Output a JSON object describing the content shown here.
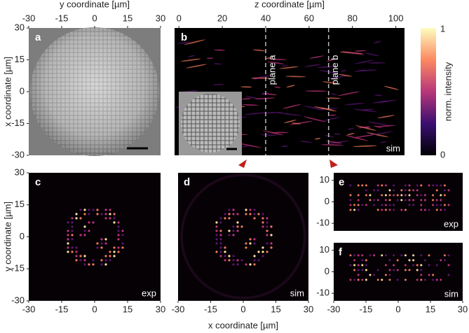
{
  "panel_a": {
    "label": "a",
    "top_axis": {
      "title": "y coordinate [µm]",
      "ticks": [
        -30,
        -15,
        0,
        15,
        30
      ],
      "lim": [
        -30,
        30
      ]
    },
    "left_axis": {
      "title": "x coordinate [µm]",
      "ticks": [
        30,
        15,
        0,
        -15,
        -30
      ],
      "lim": [
        -30,
        30
      ]
    }
  },
  "panel_b": {
    "label": "b",
    "tag": "sim",
    "top_axis": {
      "title": "z coordinate [µm]",
      "ticks": [
        0,
        20,
        40,
        60,
        80,
        100
      ],
      "lim": [
        -2,
        104
      ]
    },
    "planes": [
      {
        "label": "plane a",
        "z": 40
      },
      {
        "label": "plane b",
        "z": 69
      }
    ]
  },
  "colorbar": {
    "title": "norm. intensity",
    "max": 1,
    "min": 0
  },
  "panel_c": {
    "label": "c",
    "tag": "exp",
    "left_axis": {
      "title": "y coordinate [µm]",
      "ticks": [
        30,
        15,
        0,
        -15,
        -30
      ],
      "lim": [
        -30,
        30
      ]
    },
    "bottom_axis": {
      "ticks": [
        -30,
        -15,
        0,
        15,
        30
      ],
      "lim": [
        -30,
        30
      ]
    }
  },
  "panel_d": {
    "label": "d",
    "tag": "sim",
    "bottom_axis": {
      "ticks": [
        -30,
        -15,
        0,
        15,
        30
      ],
      "lim": [
        -30,
        30
      ]
    }
  },
  "panel_e": {
    "label": "e",
    "tag": "exp",
    "left_axis": {
      "ticks": [
        10,
        0,
        -10
      ],
      "lim": [
        -13.5,
        13.5
      ]
    }
  },
  "panel_f": {
    "label": "f",
    "tag": "sim",
    "left_axis": {
      "ticks": [
        10,
        0,
        -10
      ],
      "lim": [
        -13.5,
        13.5
      ]
    },
    "bottom_axis": {
      "ticks": [
        -30,
        -15,
        0,
        15,
        30
      ],
      "lim": [
        -30,
        30
      ]
    }
  },
  "x_axis_title": "x coordinate [µm]"
}
